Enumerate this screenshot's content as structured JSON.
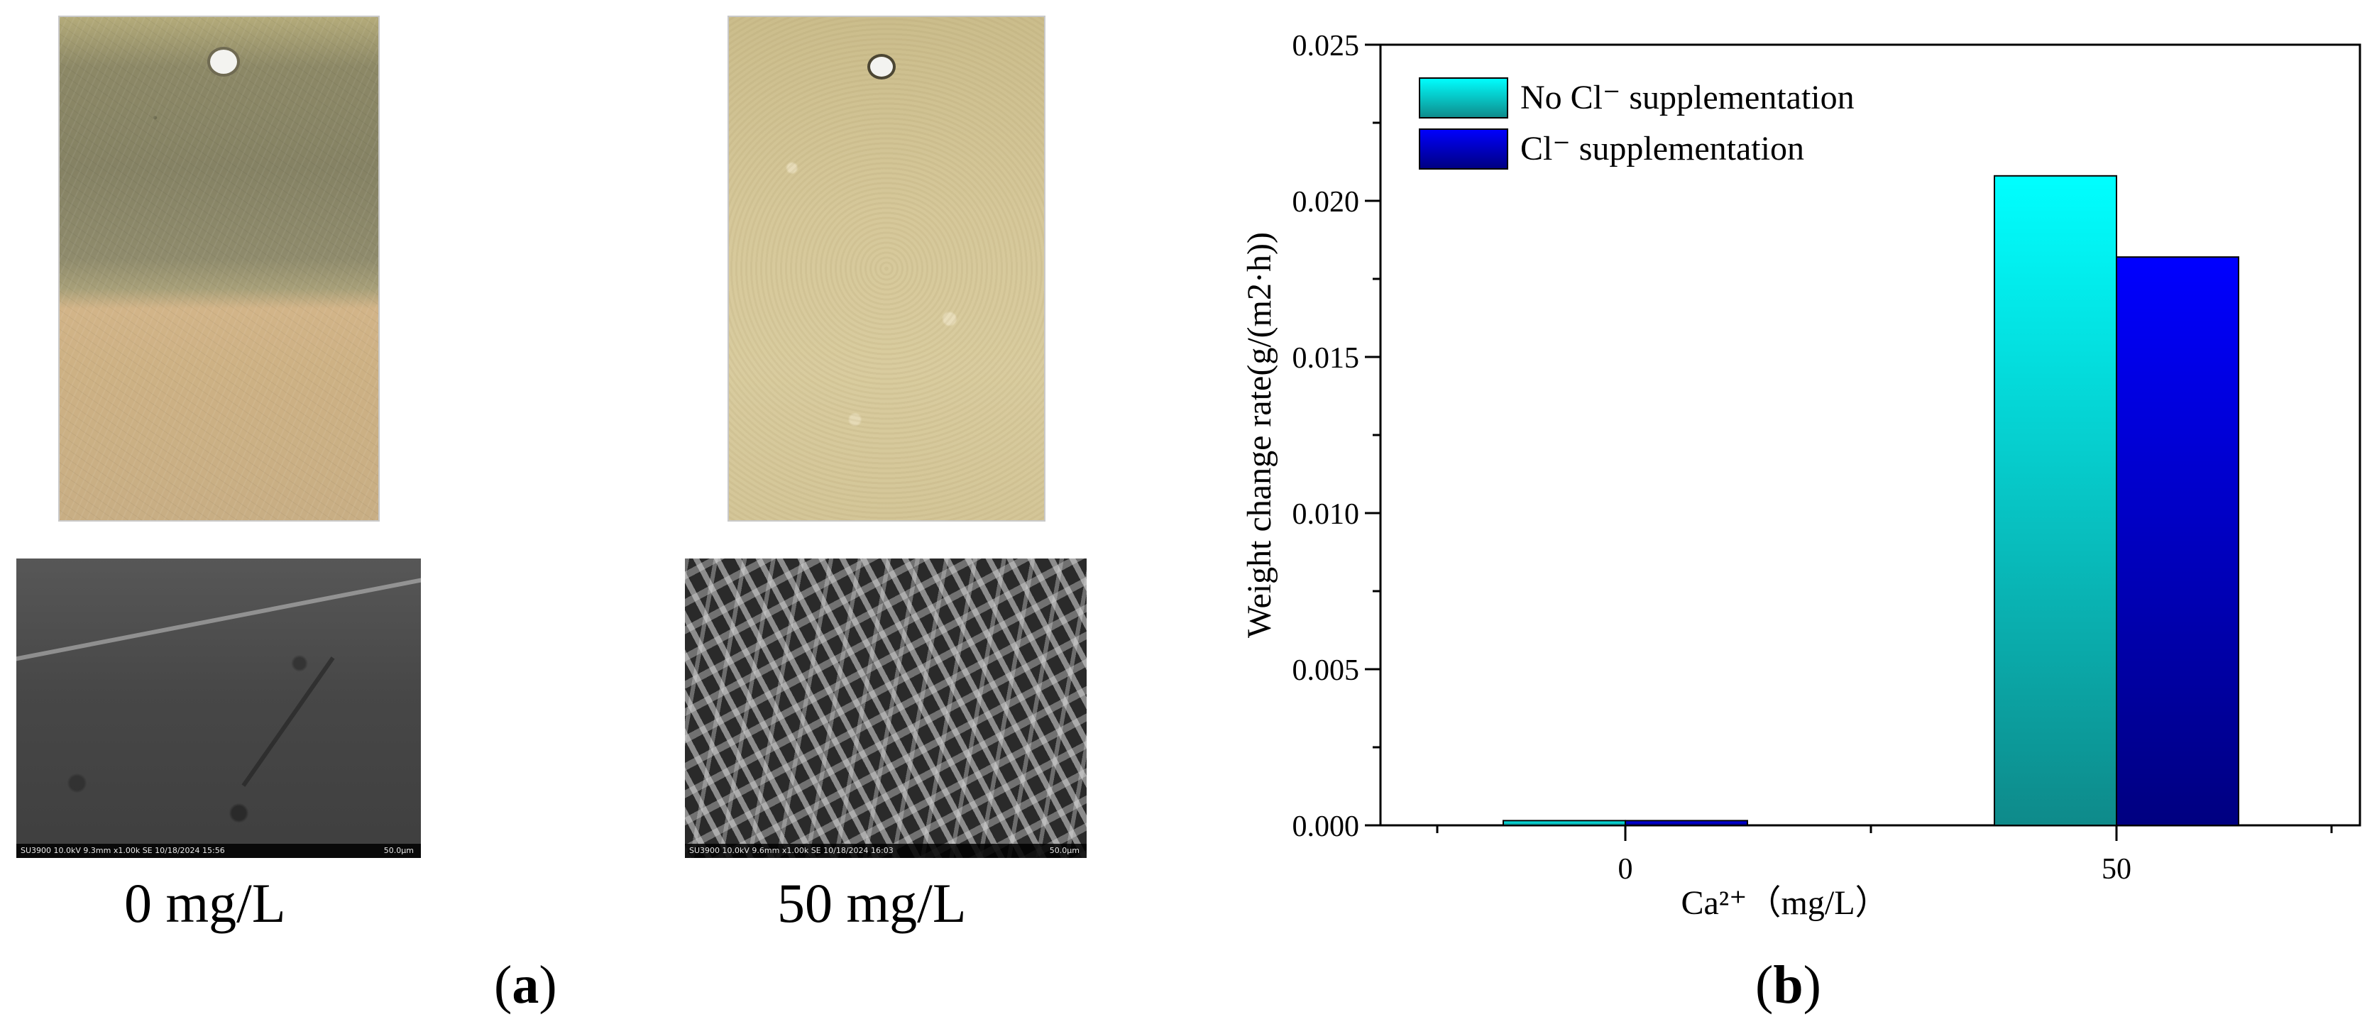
{
  "panel_a": {
    "samples": [
      {
        "caption": "0 mg/L",
        "sem_info": "SU3900 10.0kV 9.3mm x1.00k SE 10/18/2024 15:56",
        "sem_scale": "50.0µm"
      },
      {
        "caption": "50 mg/L",
        "sem_info": "SU3900 10.0kV 9.6mm x1.00k SE 10/18/2024 16:03",
        "sem_scale": "50.0µm"
      }
    ],
    "label_open": "(",
    "label_letter": "a",
    "label_close": ")"
  },
  "panel_b": {
    "label_open": "(",
    "label_letter": "b",
    "label_close": ")"
  },
  "chart_data": {
    "type": "bar",
    "categories": [
      "0",
      "50"
    ],
    "series": [
      {
        "name": "No Cl⁻ supplementation",
        "values": [
          0.00015,
          0.0208
        ],
        "color": "#00ffff",
        "color_dark": "#0e8a8a"
      },
      {
        "name": "Cl⁻ supplementation",
        "values": [
          0.00015,
          0.0182
        ],
        "color": "#0000ff",
        "color_dark": "#000080"
      }
    ],
    "xlabel": "Ca²⁺（mg/L）",
    "ylabel": "Weight change rate(g/(m2·h))",
    "ylim": [
      0,
      0.025
    ],
    "yticks": [
      "0.000",
      "0.005",
      "0.010",
      "0.015",
      "0.020",
      "0.025"
    ],
    "legend_position": "top-left",
    "grid": false
  }
}
